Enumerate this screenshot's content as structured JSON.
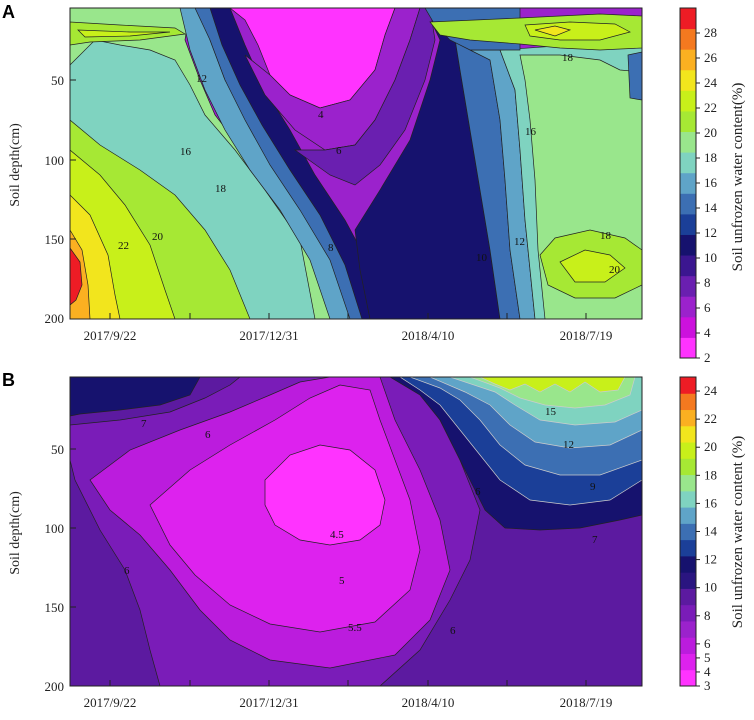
{
  "chart_data": [
    {
      "type": "heatmap",
      "panel_label": "A",
      "ylabel": "Soil depth(cm)",
      "colorbar_label": "Soil unfrozen water content(%)",
      "x_ticks": [
        "2017/9/22",
        "2017/12/31",
        "2018/4/10",
        "2018/7/19"
      ],
      "y_ticks": [
        50,
        100,
        150,
        200
      ],
      "ylim": [
        200,
        5
      ],
      "colorbar_ticks": [
        2,
        4,
        6,
        8,
        10,
        12,
        14,
        16,
        18,
        20,
        22,
        24,
        26,
        28
      ],
      "colorbar_range": [
        2,
        30
      ],
      "colorbar_colors": [
        "#ff33ff",
        "#cc11dd",
        "#9b22cc",
        "#6a1fb0",
        "#3b1690",
        "#16126e",
        "#1b3f98",
        "#3c6fb3",
        "#5fa4c8",
        "#7fd3c0",
        "#99e68c",
        "#a6e834",
        "#c8f01a",
        "#f2e51d",
        "#fbb021",
        "#f4791f",
        "#ee1c25"
      ],
      "contour_labels": [
        "12",
        "4",
        "6",
        "8",
        "10",
        "12",
        "16",
        "18",
        "20",
        "22",
        "16",
        "18",
        "18",
        "20"
      ]
    },
    {
      "type": "heatmap",
      "panel_label": "B",
      "ylabel": "Soil depth(cm)",
      "colorbar_label": "Soil unfrozen water content (%)",
      "x_ticks": [
        "2017/9/22",
        "2017/12/31",
        "2018/4/10",
        "2018/7/19"
      ],
      "y_ticks": [
        50,
        100,
        150,
        200
      ],
      "ylim": [
        200,
        5
      ],
      "colorbar_ticks": [
        3,
        4,
        5,
        6,
        8,
        10,
        12,
        14,
        16,
        18,
        20,
        22,
        24
      ],
      "colorbar_range": [
        3,
        25
      ],
      "colorbar_colors": [
        "#ff33ff",
        "#dd22ee",
        "#bb1cdd",
        "#9b22cc",
        "#7a1cb8",
        "#5c1aa0",
        "#2a1580",
        "#16126e",
        "#1b3f98",
        "#3c6fb3",
        "#5fa4c8",
        "#7fd3c0",
        "#99e68c",
        "#a6e834",
        "#c8f01a",
        "#f2e51d",
        "#fbb021",
        "#f4791f",
        "#ee1c25"
      ],
      "contour_labels": [
        "7",
        "6",
        "6",
        "4.5",
        "5",
        "5.5",
        "6",
        "6",
        "7",
        "9",
        "12",
        "15"
      ]
    }
  ]
}
